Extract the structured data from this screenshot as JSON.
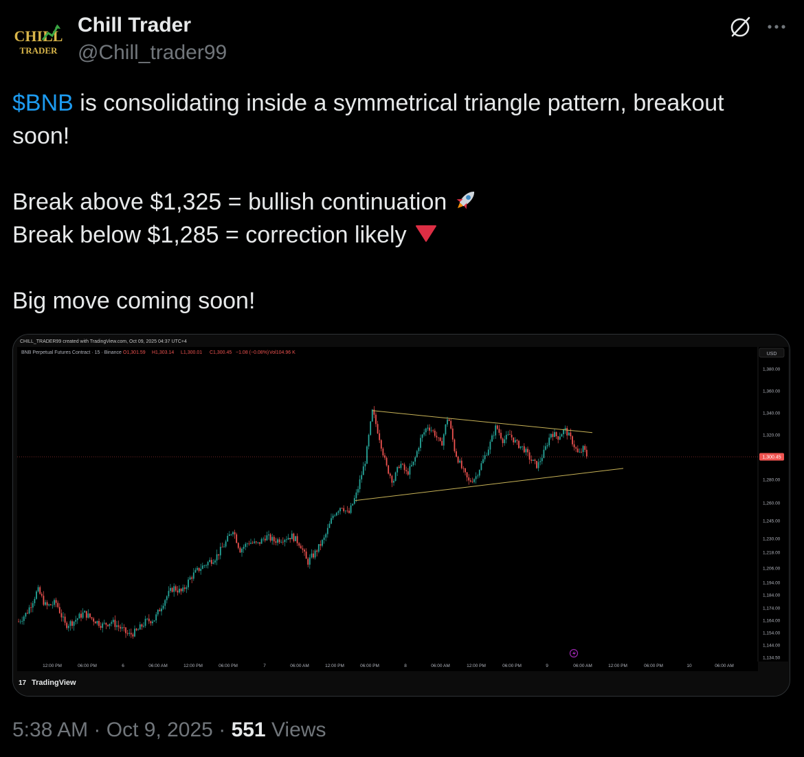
{
  "author": {
    "display_name": "Chill Trader",
    "handle": "@Chill_trader99",
    "avatar_text_top": "CHILL",
    "avatar_text_bottom": "TRADER"
  },
  "post": {
    "cashtag": "$BNB",
    "line1_rest": " is consolidating inside a symmetrical triangle pattern, breakout soon!",
    "line2": "Break above $1,325 = bullish continuation",
    "line2_emoji": "rocket",
    "line3": "Break below $1,285 = correction likely",
    "line3_emoji": "red-down-triangle",
    "line4": "Big move coming soon!"
  },
  "chart": {
    "watermark": "CHILL_TRADER99 created with TradingView.com, Oct 09, 2025 04:37 UTC+4",
    "symbol_line": "BNB Perpetual Futures Contract · 15 · Binance",
    "ohlc": {
      "o": "O1,301.59",
      "h": "H1,303.14",
      "l": "L1,300.01",
      "c": "C1,300.45",
      "chg": "−1.08 (−0.08%)",
      "vol": "Vol104.96 K"
    },
    "currency": "USD",
    "current_price_label": "1,300.45",
    "brand": "TradingView",
    "colors": {
      "up": "#26a69a",
      "down": "#ef5350",
      "triangle": "#c9b458",
      "price_line": "#ef5350"
    }
  },
  "chart_data": {
    "type": "candlestick",
    "title": "BNB Perpetual Futures Contract · 15 · Binance",
    "y_ticks": [
      "1,380.00",
      "1,360.00",
      "1,340.00",
      "1,320.00",
      "1,280.00",
      "1,260.00",
      "1,245.00",
      "1,230.00",
      "1,218.00",
      "1,206.00",
      "1,194.00",
      "1,184.00",
      "1,174.00",
      "1,164.00",
      "1,154.00",
      "1,144.00",
      "1,134.50"
    ],
    "x_ticks": [
      "12:00 PM",
      "06:00 PM",
      "6",
      "06:00 AM",
      "12:00 PM",
      "06:00 PM",
      "7",
      "06:00 AM",
      "12:00 PM",
      "06:00 PM",
      "8",
      "06:00 AM",
      "12:00 PM",
      "06:00 PM",
      "9",
      "06:00 AM",
      "12:00 PM",
      "06:00 PM",
      "10",
      "06:00 AM"
    ],
    "y_range": [
      1134.5,
      1390
    ],
    "current_price": 1300.45,
    "close_path": [
      [
        0,
        1163
      ],
      [
        12,
        1170
      ],
      [
        28,
        1188
      ],
      [
        40,
        1175
      ],
      [
        55,
        1178
      ],
      [
        68,
        1160
      ],
      [
        80,
        1163
      ],
      [
        95,
        1170
      ],
      [
        108,
        1165
      ],
      [
        122,
        1160
      ],
      [
        135,
        1163
      ],
      [
        148,
        1158
      ],
      [
        160,
        1152
      ],
      [
        172,
        1155
      ],
      [
        185,
        1163
      ],
      [
        198,
        1165
      ],
      [
        212,
        1180
      ],
      [
        225,
        1190
      ],
      [
        238,
        1186
      ],
      [
        250,
        1198
      ],
      [
        262,
        1205
      ],
      [
        275,
        1210
      ],
      [
        288,
        1215
      ],
      [
        300,
        1225
      ],
      [
        312,
        1238
      ],
      [
        322,
        1220
      ],
      [
        335,
        1227
      ],
      [
        348,
        1225
      ],
      [
        360,
        1232
      ],
      [
        372,
        1228
      ],
      [
        385,
        1230
      ],
      [
        398,
        1232
      ],
      [
        410,
        1225
      ],
      [
        420,
        1210
      ],
      [
        432,
        1218
      ],
      [
        445,
        1230
      ],
      [
        458,
        1250
      ],
      [
        470,
        1258
      ],
      [
        480,
        1250
      ],
      [
        492,
        1268
      ],
      [
        505,
        1298
      ],
      [
        515,
        1342
      ],
      [
        525,
        1318
      ],
      [
        535,
        1292
      ],
      [
        545,
        1278
      ],
      [
        555,
        1295
      ],
      [
        565,
        1285
      ],
      [
        575,
        1295
      ],
      [
        585,
        1316
      ],
      [
        595,
        1328
      ],
      [
        605,
        1322
      ],
      [
        615,
        1310
      ],
      [
        625,
        1338
      ],
      [
        635,
        1305
      ],
      [
        645,
        1290
      ],
      [
        655,
        1278
      ],
      [
        665,
        1282
      ],
      [
        675,
        1296
      ],
      [
        685,
        1310
      ],
      [
        695,
        1328
      ],
      [
        705,
        1315
      ],
      [
        715,
        1320
      ],
      [
        725,
        1312
      ],
      [
        735,
        1308
      ],
      [
        745,
        1298
      ],
      [
        755,
        1292
      ],
      [
        765,
        1305
      ],
      [
        775,
        1322
      ],
      [
        785,
        1318
      ],
      [
        795,
        1325
      ],
      [
        805,
        1315
      ],
      [
        815,
        1302
      ],
      [
        822,
        1308
      ],
      [
        828,
        1300
      ]
    ],
    "triangle_upper": [
      [
        515,
        1342
      ],
      [
        835,
        1322
      ]
    ],
    "triangle_lower": [
      [
        490,
        1262
      ],
      [
        880,
        1290
      ]
    ]
  },
  "footer": {
    "time": "5:38 AM",
    "dot": "·",
    "date": "Oct 9, 2025",
    "views_count": "551",
    "views_label": " Views"
  },
  "icons": {
    "grok": "grok-icon",
    "more": "more-icon"
  }
}
